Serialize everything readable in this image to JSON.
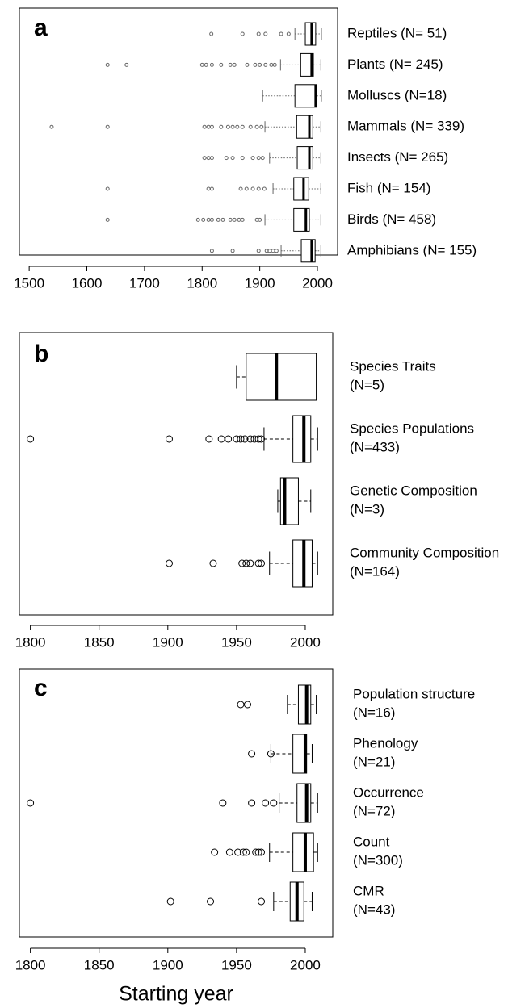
{
  "chart_data": [
    {
      "type": "box",
      "panel_label": "a",
      "categories": [
        "Reptiles (N= 51)",
        "Plants (N= 245)",
        "Molluscs (N=18)",
        "Mammals (N= 339)",
        "Insects (N= 265)",
        "Fish (N= 154)",
        "Birds (N= 458)",
        "Amphibians (N= 155)"
      ],
      "boxes": [
        {
          "whisker_low": 1961,
          "q1": 1979,
          "median": 1990,
          "q3": 1997,
          "whisker_high": 2007,
          "outliers": [
            1816,
            1870,
            1898,
            1910,
            1937,
            1950
          ]
        },
        {
          "whisker_low": 1936,
          "q1": 1971,
          "median": 1990,
          "q3": 1993,
          "whisker_high": 2006,
          "outliers": [
            1636,
            1669,
            1800,
            1807,
            1817,
            1833,
            1849,
            1856,
            1878,
            1892,
            1900,
            1910,
            1920,
            1926
          ]
        },
        {
          "whisker_low": 1905,
          "q1": 1961,
          "median": 1997,
          "q3": 1999,
          "whisker_high": 2007,
          "outliers": []
        },
        {
          "whisker_low": 1909,
          "q1": 1964,
          "median": 1986,
          "q3": 1992,
          "whisker_high": 2006,
          "outliers": [
            1539,
            1636,
            1804,
            1811,
            1817,
            1833,
            1845,
            1853,
            1861,
            1870,
            1884,
            1895,
            1903
          ]
        },
        {
          "whisker_low": 1917,
          "q1": 1965,
          "median": 1986,
          "q3": 1992,
          "whisker_high": 2006,
          "outliers": [
            1804,
            1811,
            1817,
            1842,
            1853,
            1870,
            1888,
            1898,
            1905
          ]
        },
        {
          "whisker_low": 1923,
          "q1": 1959,
          "median": 1976,
          "q3": 1985,
          "whisker_high": 2006,
          "outliers": [
            1636,
            1811,
            1817,
            1867,
            1877,
            1888,
            1898,
            1908
          ]
        },
        {
          "whisker_low": 1909,
          "q1": 1959,
          "median": 1980,
          "q3": 1986,
          "whisker_high": 2006,
          "outliers": [
            1636,
            1793,
            1802,
            1811,
            1817,
            1828,
            1836,
            1849,
            1856,
            1864,
            1870,
            1895,
            1900
          ]
        },
        {
          "whisker_low": 1937,
          "q1": 1972,
          "median": 1990,
          "q3": 1996,
          "whisker_high": 2006,
          "outliers": [
            1817,
            1853,
            1898,
            1912,
            1917,
            1923,
            1929
          ]
        }
      ],
      "xlim": [
        1483,
        2035
      ],
      "xticks": [
        1500,
        1600,
        1700,
        1800,
        1900,
        2000
      ]
    },
    {
      "type": "box",
      "panel_label": "b",
      "categories": [
        "Species Traits",
        "Species Populations",
        "Genetic Composition",
        "Community Composition"
      ],
      "sample_sizes": [
        "(N=5)",
        "(N=433)",
        "(N=3)",
        "(N=164)"
      ],
      "boxes": [
        {
          "whisker_low": 1950,
          "q1": 1957,
          "median": 1979,
          "q3": 2008,
          "whisker_high": 2008,
          "outliers": []
        },
        {
          "whisker_low": 1970,
          "q1": 1991,
          "median": 1999,
          "q3": 2004,
          "whisker_high": 2009,
          "outliers": [
            1800,
            1901,
            1930,
            1939,
            1944,
            1950,
            1953,
            1956,
            1960,
            1963,
            1966,
            1968
          ]
        },
        {
          "whisker_low": 1980,
          "q1": 1982,
          "median": 1985,
          "q3": 1995,
          "whisker_high": 2004,
          "outliers": []
        },
        {
          "whisker_low": 1974,
          "q1": 1991,
          "median": 1999,
          "q3": 2005,
          "whisker_high": 2009,
          "outliers": [
            1901,
            1933,
            1954,
            1957,
            1960,
            1966,
            1968
          ]
        }
      ],
      "xlim": [
        1792,
        2020
      ],
      "xticks": [
        1800,
        1850,
        1900,
        1950,
        2000
      ]
    },
    {
      "type": "box",
      "panel_label": "c",
      "categories": [
        "Population structure",
        "Phenology",
        "Occurrence",
        "Count",
        "CMR"
      ],
      "sample_sizes": [
        "(N=16)",
        "(N=21)",
        "(N=72)",
        "(N=300)",
        "(N=43)"
      ],
      "boxes": [
        {
          "whisker_low": 1987,
          "q1": 1995,
          "median": 2001,
          "q3": 2004,
          "whisker_high": 2008,
          "outliers": [
            1953,
            1958
          ]
        },
        {
          "whisker_low": 1975,
          "q1": 1991,
          "median": 2000,
          "q3": 2001,
          "whisker_high": 2005,
          "outliers": [
            1961,
            1975
          ]
        },
        {
          "whisker_low": 1981,
          "q1": 1994,
          "median": 2001,
          "q3": 2004,
          "whisker_high": 2009,
          "outliers": [
            1800,
            1940,
            1961,
            1971,
            1977
          ]
        },
        {
          "whisker_low": 1974,
          "q1": 1991,
          "median": 2000,
          "q3": 2006,
          "whisker_high": 2009,
          "outliers": [
            1934,
            1945,
            1951,
            1955,
            1957,
            1964,
            1966,
            1968
          ]
        },
        {
          "whisker_low": 1977,
          "q1": 1989,
          "median": 1994,
          "q3": 1999,
          "whisker_high": 2005,
          "outliers": [
            1902,
            1931,
            1968
          ]
        }
      ],
      "xlim": [
        1792,
        2020
      ],
      "xticks": [
        1800,
        1850,
        1900,
        1950,
        2000
      ],
      "xlabel": "Starting year"
    }
  ]
}
